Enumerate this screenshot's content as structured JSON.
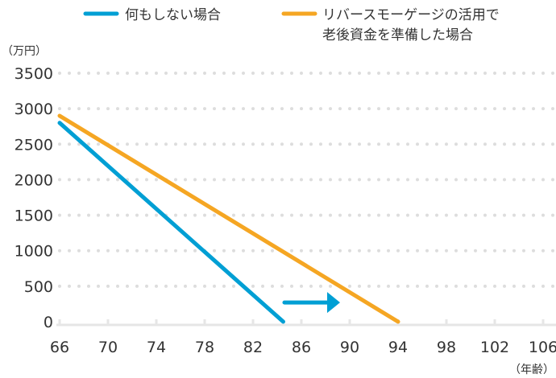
{
  "chart_data": {
    "type": "line",
    "ylabel": "（万円）",
    "xlabel": "（年齢）",
    "xlim": [
      66,
      106
    ],
    "ylim": [
      0,
      3500
    ],
    "x_ticks": [
      66,
      70,
      74,
      78,
      82,
      86,
      90,
      94,
      98,
      102,
      106
    ],
    "y_ticks": [
      0,
      500,
      1000,
      1500,
      2000,
      2500,
      3000,
      3500
    ],
    "grid": "horizontal dotted",
    "legend_placement": "top",
    "series": [
      {
        "name": "何もしない場合",
        "color": "#009fd4",
        "points": [
          [
            66,
            2800
          ],
          [
            84.5,
            0
          ]
        ]
      },
      {
        "name_lines": [
          "リバースモーゲージの活用で",
          "老後資金を準備した場合"
        ],
        "name": "リバースモーゲージの活用で老後資金を準備した場合",
        "color": "#f5a623",
        "points": [
          [
            66,
            2900
          ],
          [
            94,
            0
          ]
        ]
      }
    ],
    "annotation": {
      "type": "arrow",
      "color": "#009fd4",
      "from": [
        84.6,
        270
      ],
      "to": [
        89,
        270
      ]
    }
  }
}
